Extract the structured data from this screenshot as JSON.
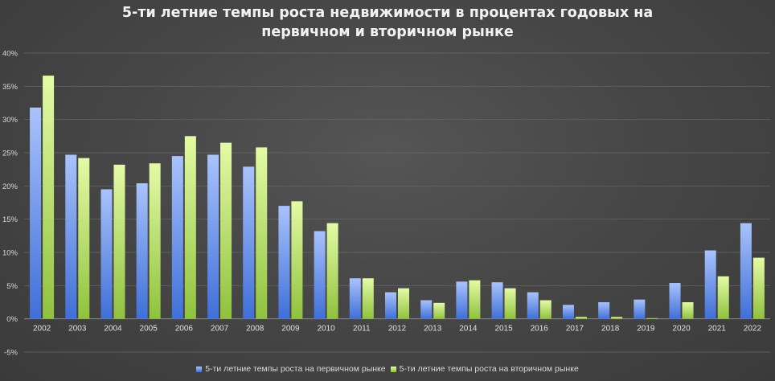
{
  "chart_data": {
    "type": "bar",
    "title_line1": "5-ти летние темпы роста недвижимости в процентах годовых на",
    "title_line2": "первичном и вторичном рынке",
    "categories": [
      "2002",
      "2003",
      "2004",
      "2005",
      "2006",
      "2007",
      "2008",
      "2009",
      "2010",
      "2011",
      "2012",
      "2013",
      "2014",
      "2015",
      "2016",
      "2017",
      "2018",
      "2019",
      "2020",
      "2021",
      "2022"
    ],
    "series": [
      {
        "name": "5-ти летние темпы роста на первичном рынке",
        "color": "#7aa2f0",
        "values": [
          31.8,
          24.7,
          19.5,
          20.4,
          24.5,
          24.7,
          22.9,
          17.0,
          13.2,
          6.1,
          4.0,
          2.8,
          5.6,
          5.5,
          4.0,
          2.1,
          2.5,
          2.9,
          5.4,
          10.3,
          14.4
        ]
      },
      {
        "name": "5-ти летние темпы роста на вторичном рынке",
        "color": "#c6ee7e",
        "values": [
          36.6,
          24.2,
          23.2,
          23.4,
          27.5,
          26.5,
          25.8,
          17.7,
          14.4,
          6.1,
          4.6,
          2.4,
          5.8,
          4.6,
          2.8,
          0.3,
          0.3,
          0.1,
          2.5,
          6.4,
          9.2
        ]
      }
    ],
    "y_ticks": [
      "-5%",
      "0%",
      "5%",
      "10%",
      "15%",
      "20%",
      "25%",
      "30%",
      "35%",
      "40%"
    ],
    "ylim": [
      -5,
      40
    ],
    "grid": true,
    "legend_position": "bottom"
  }
}
